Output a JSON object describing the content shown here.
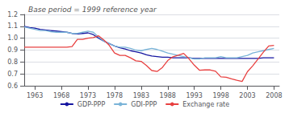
{
  "chart_data": {
    "type": "line",
    "title": "Base period = 1999 reference year",
    "x": [
      1961,
      1962,
      1963,
      1964,
      1965,
      1966,
      1967,
      1968,
      1969,
      1970,
      1971,
      1972,
      1973,
      1974,
      1975,
      1976,
      1977,
      1978,
      1979,
      1980,
      1981,
      1982,
      1983,
      1984,
      1985,
      1986,
      1987,
      1988,
      1989,
      1990,
      1991,
      1992,
      1993,
      1994,
      1995,
      1996,
      1997,
      1998,
      1999,
      2000,
      2001,
      2002,
      2003,
      2004,
      2005,
      2006,
      2007,
      2008
    ],
    "series": [
      {
        "name": "GDP-PPP",
        "color": "#1515a0",
        "values": [
          1.1,
          1.09,
          1.085,
          1.075,
          1.07,
          1.065,
          1.06,
          1.055,
          1.05,
          1.04,
          1.035,
          1.04,
          1.045,
          1.03,
          1.0,
          0.975,
          0.955,
          0.935,
          0.92,
          0.91,
          0.895,
          0.885,
          0.875,
          0.86,
          0.85,
          0.845,
          0.84,
          0.84,
          0.835,
          0.835,
          0.835,
          0.835,
          0.83,
          0.83,
          0.83,
          0.83,
          0.83,
          0.83,
          0.83,
          0.83,
          0.83,
          0.83,
          0.83,
          0.83,
          0.83,
          0.835,
          0.835,
          0.835
        ]
      },
      {
        "name": "GDI-PPP",
        "color": "#7ab4d8",
        "values": [
          1.095,
          1.085,
          1.075,
          1.065,
          1.065,
          1.055,
          1.05,
          1.05,
          1.05,
          1.04,
          1.04,
          1.05,
          1.06,
          1.05,
          1.01,
          0.975,
          0.955,
          0.935,
          0.925,
          0.925,
          0.915,
          0.9,
          0.895,
          0.905,
          0.915,
          0.905,
          0.89,
          0.875,
          0.865,
          0.855,
          0.845,
          0.835,
          0.825,
          0.825,
          0.835,
          0.835,
          0.835,
          0.845,
          0.835,
          0.835,
          0.835,
          0.845,
          0.855,
          0.875,
          0.885,
          0.895,
          0.905,
          0.915
        ]
      },
      {
        "name": "Exchange rate",
        "color": "#e84040",
        "values": [
          0.925,
          0.925,
          0.925,
          0.925,
          0.925,
          0.925,
          0.925,
          0.925,
          0.925,
          0.93,
          0.99,
          0.99,
          1.0,
          1.005,
          1.02,
          0.985,
          0.94,
          0.875,
          0.855,
          0.855,
          0.835,
          0.81,
          0.805,
          0.77,
          0.728,
          0.72,
          0.754,
          0.812,
          0.844,
          0.857,
          0.872,
          0.827,
          0.773,
          0.73,
          0.733,
          0.733,
          0.722,
          0.675,
          0.672,
          0.658,
          0.646,
          0.636,
          0.718,
          0.768,
          0.825,
          0.882,
          0.935,
          0.94
        ]
      }
    ],
    "xlim": [
      1961,
      2009
    ],
    "xticks": [
      1963,
      1968,
      1973,
      1978,
      1983,
      1988,
      1993,
      1998,
      2003,
      2008
    ],
    "ylim": [
      0.6,
      1.2
    ],
    "yticks": [
      0.6,
      0.7,
      0.8,
      0.9,
      {
        "value": 1.0,
        "label": "1.0"
      },
      1.1,
      1.2
    ],
    "grid": true,
    "legend": "bottom"
  }
}
